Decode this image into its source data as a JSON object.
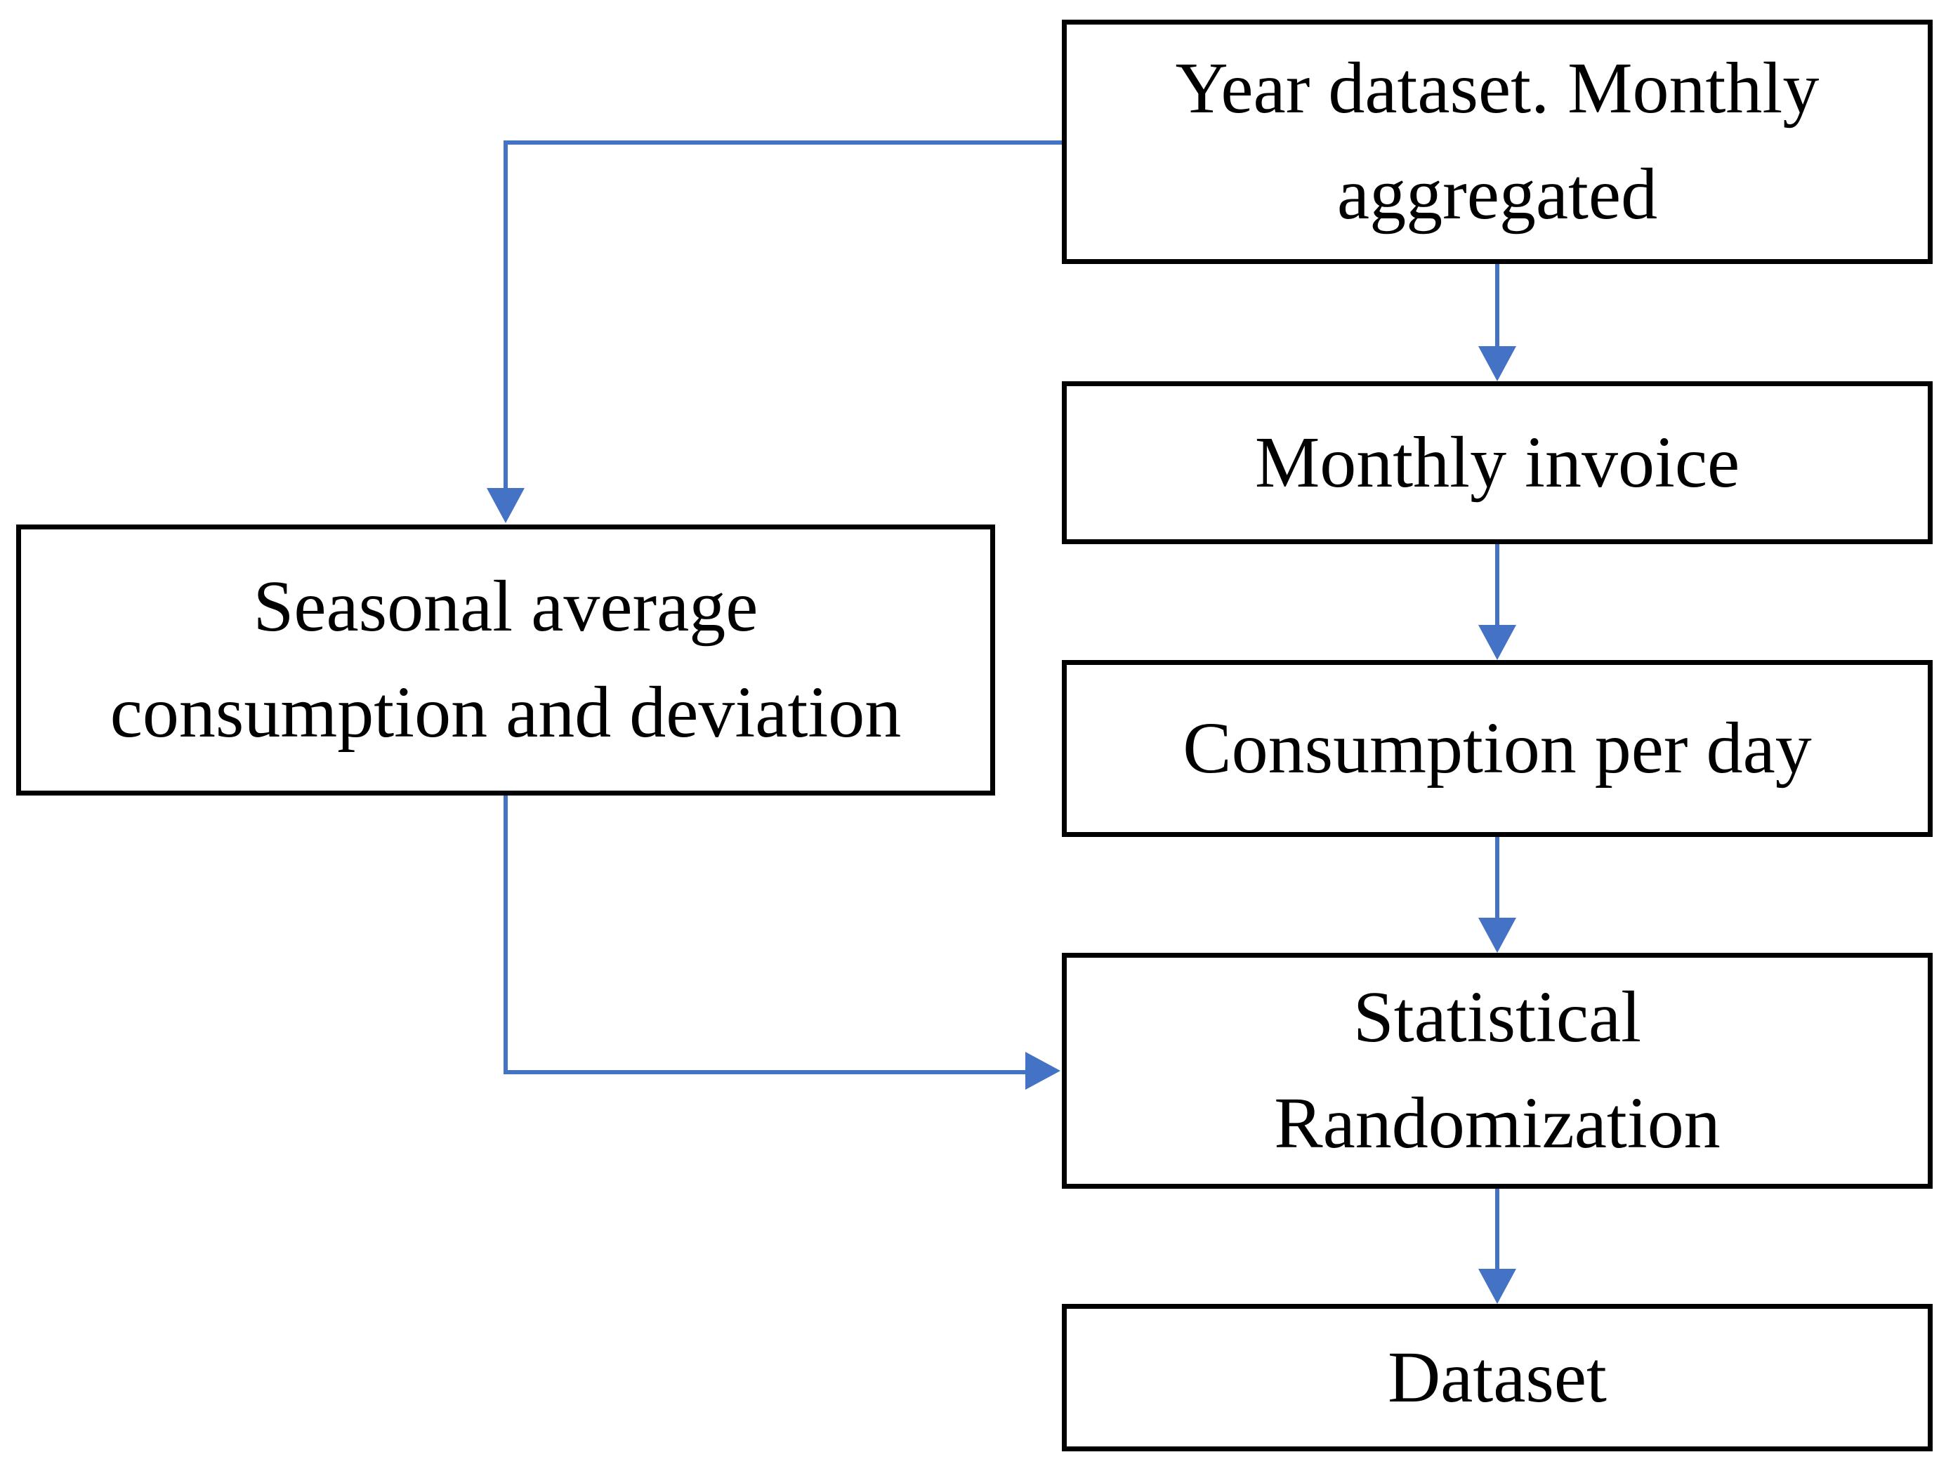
{
  "nodes": {
    "year_dataset": {
      "label": [
        "Year dataset. Monthly",
        "aggregated"
      ]
    },
    "monthly_invoice": {
      "label": "Monthly invoice"
    },
    "consumption_per_day": {
      "label": "Consumption per day"
    },
    "statistical_randomization": {
      "label": [
        "Statistical",
        "Randomization"
      ]
    },
    "dataset": {
      "label": "Dataset"
    },
    "seasonal_average": {
      "label": [
        "Seasonal average",
        "consumption and deviation"
      ]
    }
  },
  "edges": [
    {
      "from": "year_dataset",
      "to": "monthly_invoice"
    },
    {
      "from": "monthly_invoice",
      "to": "consumption_per_day"
    },
    {
      "from": "consumption_per_day",
      "to": "statistical_randomization"
    },
    {
      "from": "statistical_randomization",
      "to": "dataset"
    },
    {
      "from": "year_dataset",
      "to": "seasonal_average"
    },
    {
      "from": "seasonal_average",
      "to": "statistical_randomization"
    }
  ],
  "colors": {
    "connector": "#4472C4",
    "border": "#000000",
    "text": "#000000",
    "background": "#FFFFFF"
  }
}
